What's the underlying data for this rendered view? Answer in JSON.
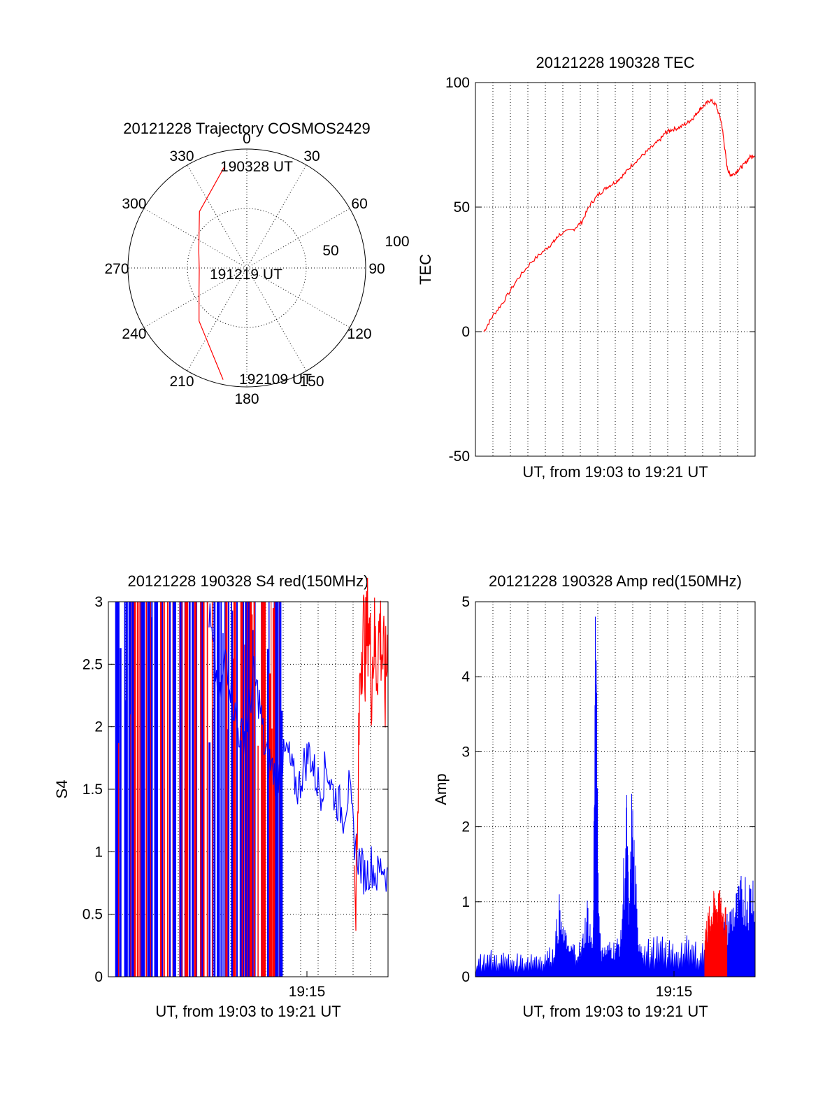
{
  "colors": {
    "red_channel": "#ff0000",
    "blue_channel": "#0000ff",
    "axes": "#000000",
    "background": "#ffffff"
  },
  "chart_data": [
    {
      "id": "trajectory",
      "type": "polar",
      "title": "20121228 Trajectory COSMOS2429",
      "angle_labels": [
        "0",
        "30",
        "60",
        "90",
        "120",
        "150",
        "180",
        "210",
        "240",
        "270",
        "300",
        "330"
      ],
      "radial_labels": [
        "50",
        "100"
      ],
      "radial_values": [
        50,
        100
      ],
      "start_label": "190328 UT",
      "mid_label": "191219 UT",
      "end_label": "192109 UT",
      "series": [
        {
          "color": "#ff0000",
          "points": [
            {
              "az": 348,
              "el": 88
            },
            {
              "az": 320,
              "el": 62
            },
            {
              "az": 290,
              "el": 43
            },
            {
              "az": 268,
              "el": 40
            },
            {
              "az": 246,
              "el": 44
            },
            {
              "az": 222,
              "el": 60
            },
            {
              "az": 192,
              "el": 96
            }
          ]
        }
      ]
    },
    {
      "id": "tec",
      "type": "line",
      "title": "20121228 190328 TEC",
      "ylabel": "TEC",
      "xlabel": "UT, from 19:03 to 19:21 UT",
      "ylim": [
        -50,
        100
      ],
      "yticks": [
        "-50",
        "0",
        "50",
        "100"
      ],
      "xlim": [
        0,
        1
      ],
      "series": [
        {
          "color": "#ff0000",
          "x": [
            0.03,
            0.06,
            0.1,
            0.15,
            0.2,
            0.25,
            0.28,
            0.3,
            0.35,
            0.38,
            0.41,
            0.44,
            0.47,
            0.5,
            0.53,
            0.56,
            0.6,
            0.63,
            0.66,
            0.68,
            0.7,
            0.73,
            0.76,
            0.78,
            0.8,
            0.82,
            0.84,
            0.86,
            0.88,
            0.89,
            0.9,
            0.91,
            0.92,
            0.94,
            0.96,
            0.98,
            1.0
          ],
          "y": [
            0,
            6,
            12,
            21,
            28,
            33,
            36,
            39,
            41,
            44,
            51,
            55,
            58,
            60,
            63,
            67,
            71,
            74,
            77,
            80,
            81,
            82,
            84,
            86,
            89,
            91,
            93,
            91,
            84,
            75,
            66,
            63,
            63,
            65,
            67,
            70,
            71
          ]
        }
      ]
    },
    {
      "id": "s4",
      "type": "line",
      "title": "20121228 190328 S4 red(150MHz)",
      "ylabel": "S4",
      "xlabel": "UT, from 19:03 to 19:21 UT",
      "ylim": [
        0,
        3
      ],
      "yticks": [
        "0",
        "0.5",
        "1",
        "1.5",
        "2",
        "2.5",
        "3"
      ],
      "xticks": [
        "19:15"
      ],
      "xtick_positions": [
        0.71
      ],
      "xlim": [
        0,
        1
      ],
      "series": [
        {
          "name": "blue",
          "color": "#0000ff",
          "x": [
            0.36,
            0.38,
            0.4,
            0.42,
            0.44,
            0.46,
            0.48,
            0.5,
            0.52,
            0.54,
            0.56,
            0.58,
            0.6,
            0.62,
            0.64,
            0.66,
            0.68,
            0.7,
            0.72,
            0.74,
            0.76,
            0.78,
            0.8,
            0.82,
            0.84,
            0.86,
            0.88,
            0.9,
            0.92,
            0.94,
            0.96,
            0.98,
            1.0
          ],
          "y": [
            2.9,
            2.5,
            2.2,
            2.6,
            2.3,
            2.0,
            1.9,
            2.1,
            2.4,
            2.2,
            1.8,
            1.7,
            1.6,
            1.7,
            1.8,
            1.6,
            1.5,
            1.7,
            1.8,
            1.6,
            1.5,
            1.7,
            1.5,
            1.4,
            1.3,
            1.5,
            1.1,
            0.9,
            0.8,
            0.9,
            0.8,
            0.9,
            0.8
          ]
        },
        {
          "name": "red",
          "color": "#ff0000",
          "x": [
            0.88,
            0.89,
            0.9,
            0.91,
            0.92,
            0.93,
            0.94,
            0.95,
            0.96,
            0.97,
            0.98,
            0.99,
            1.0
          ],
          "y": [
            0.7,
            0.9,
            2.5,
            2.8,
            2.6,
            2.9,
            2.4,
            2.7,
            2.5,
            2.8,
            2.6,
            2.3,
            2.7
          ]
        }
      ]
    },
    {
      "id": "amp",
      "type": "line",
      "title": "20121228 190328 Amp red(150MHz)",
      "ylabel": "Amp",
      "xlabel": "UT, from 19:03 to 19:21 UT",
      "ylim": [
        0,
        5
      ],
      "yticks": [
        "0",
        "1",
        "2",
        "3",
        "4",
        "5"
      ],
      "xticks": [
        "19:15"
      ],
      "xtick_positions": [
        0.71
      ],
      "xlim": [
        0,
        1
      ],
      "series": [
        {
          "name": "blue",
          "color": "#0000ff",
          "x": [
            0.0,
            0.05,
            0.1,
            0.15,
            0.2,
            0.25,
            0.28,
            0.3,
            0.31,
            0.32,
            0.33,
            0.35,
            0.38,
            0.4,
            0.42,
            0.43,
            0.44,
            0.45,
            0.46,
            0.48,
            0.5,
            0.52,
            0.54,
            0.55,
            0.56,
            0.58,
            0.6,
            0.65,
            0.7,
            0.75,
            0.8,
            0.85,
            0.88,
            0.9,
            0.92,
            0.94,
            0.96,
            0.98,
            1.0
          ],
          "y": [
            0.25,
            0.3,
            0.28,
            0.25,
            0.3,
            0.3,
            0.35,
            0.9,
            0.5,
            0.6,
            0.35,
            0.4,
            0.4,
            0.9,
            0.4,
            4.4,
            1.0,
            0.3,
            0.35,
            0.4,
            0.4,
            0.5,
            2.2,
            0.6,
            2.3,
            0.6,
            0.4,
            0.45,
            0.4,
            0.45,
            0.4,
            0.5,
            0.6,
            0.7,
            0.9,
            1.0,
            1.2,
            1.1,
            1.3
          ]
        },
        {
          "name": "red",
          "color": "#ff0000",
          "x": [
            0.82,
            0.84,
            0.86,
            0.88,
            0.9
          ],
          "y": [
            0.6,
            0.8,
            1.0,
            0.9,
            0.7
          ]
        }
      ]
    }
  ]
}
